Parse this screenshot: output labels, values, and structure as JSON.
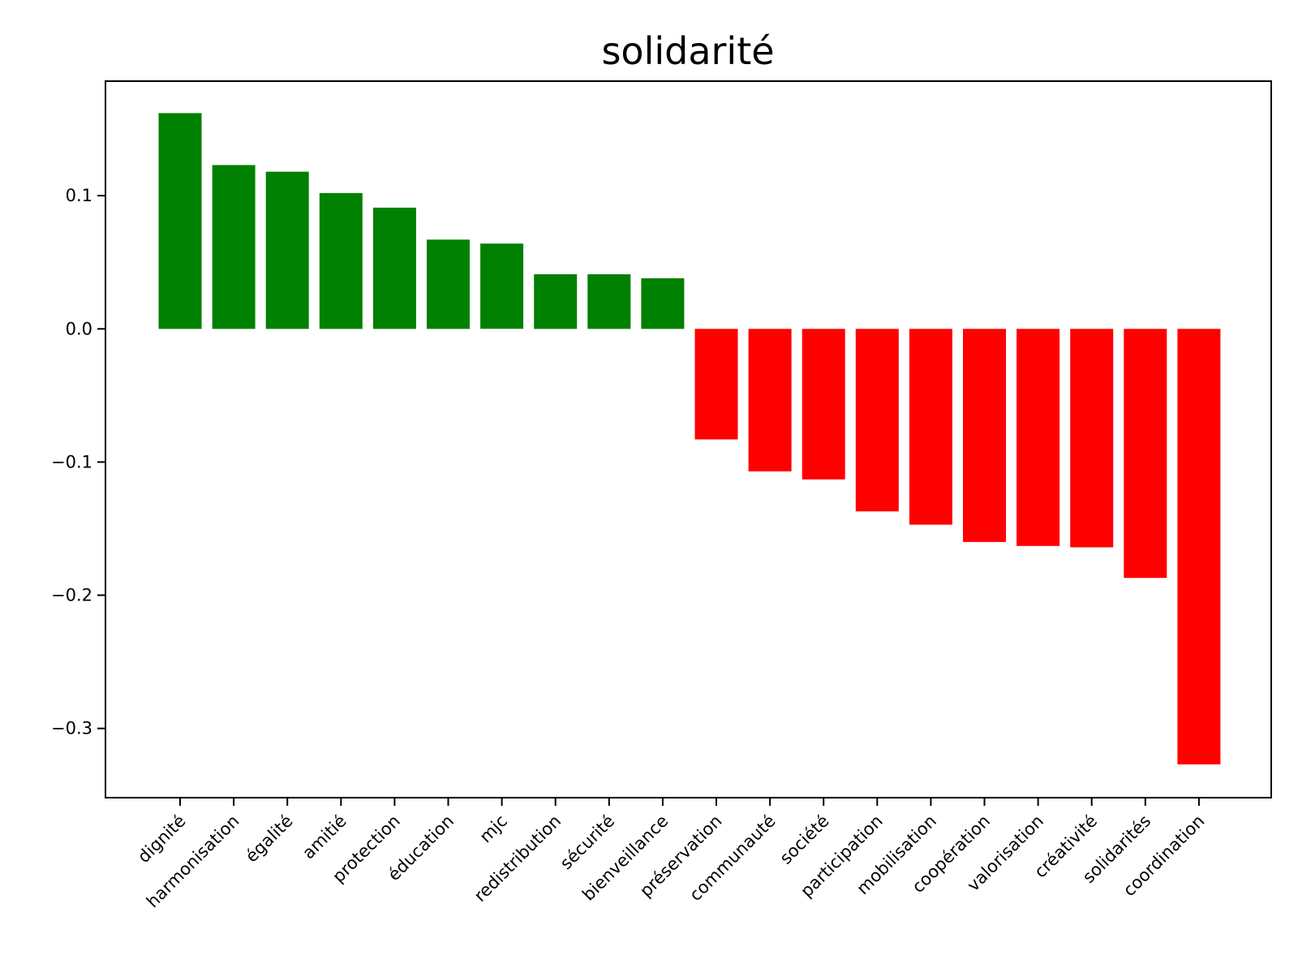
{
  "chart_data": {
    "type": "bar",
    "title": "solidarité",
    "xlabel": "",
    "ylabel": "",
    "ylim": [
      -0.352,
      0.186
    ],
    "yticks": [
      -0.3,
      -0.2,
      -0.1,
      0.0,
      0.1
    ],
    "ytick_labels": [
      "−0.3",
      "−0.2",
      "−0.1",
      "0.0",
      "0.1"
    ],
    "grid": false,
    "legend": "none",
    "colors": {
      "positive": "#008000",
      "negative": "#ff0000",
      "axis": "#000000",
      "background": "#ffffff"
    },
    "categories": [
      "dignité",
      "harmonisation",
      "égalité",
      "amitié",
      "protection",
      "éducation",
      "mjc",
      "redistribution",
      "sécurité",
      "bienveillance",
      "préservation",
      "communauté",
      "société",
      "participation",
      "mobilisation",
      "coopération",
      "valorisation",
      "créativité",
      "solidarités",
      "coordination"
    ],
    "values": [
      0.162,
      0.123,
      0.118,
      0.102,
      0.091,
      0.067,
      0.064,
      0.041,
      0.041,
      0.038,
      -0.083,
      -0.107,
      -0.113,
      -0.137,
      -0.147,
      -0.16,
      -0.163,
      -0.164,
      -0.187,
      -0.327
    ]
  }
}
